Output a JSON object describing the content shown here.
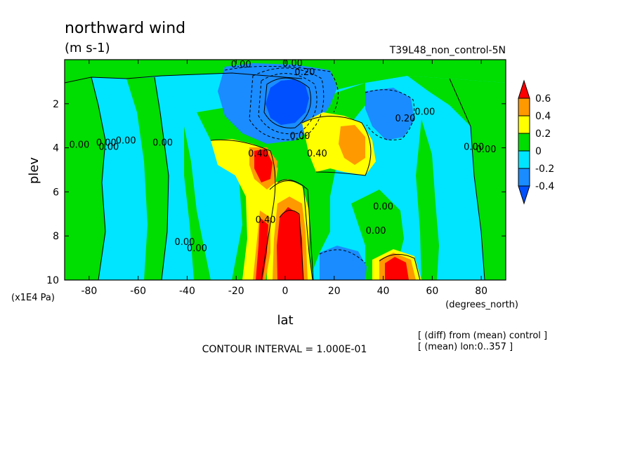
{
  "chart_data": {
    "type": "heatmap",
    "title": "northward wind",
    "units": "(m s-1)",
    "run_label": "T39L48_non_control-5N",
    "xlabel": "lat",
    "x_units": "(degrees_north)",
    "ylabel": "plev",
    "y_units": "(x1E4 Pa)",
    "xlim": [
      -90,
      90
    ],
    "ylim": [
      10,
      0
    ],
    "x_ticks": [
      -80,
      -60,
      -40,
      -20,
      0,
      20,
      40,
      60,
      80
    ],
    "y_ticks": [
      2,
      4,
      6,
      8,
      10
    ],
    "contour_interval_text": "CONTOUR INTERVAL = 1.000E-01",
    "notes": [
      "[ (diff) from (mean) control ]",
      "[ (mean) lon:0..357 ]"
    ],
    "colorbar": {
      "labels": [
        "0.6",
        "0.4",
        "0.2",
        "0",
        "-0.2",
        "-0.4"
      ],
      "levels": [
        {
          "min": 0.6,
          "color": "#ff0000"
        },
        {
          "min": 0.4,
          "max": 0.6,
          "color": "#ff9900"
        },
        {
          "min": 0.2,
          "max": 0.4,
          "color": "#ffff00"
        },
        {
          "min": 0.0,
          "max": 0.2,
          "color": "#00dd00"
        },
        {
          "min": -0.2,
          "max": 0.0,
          "color": "#00e5ff"
        },
        {
          "min": -0.4,
          "max": -0.2,
          "color": "#1a8cff"
        },
        {
          "max": -0.4,
          "color": "#0050ff"
        }
      ]
    },
    "contour_labels": [
      {
        "text": "0.00",
        "lat": -50,
        "plev": 3.9
      },
      {
        "text": "0.00",
        "lat": -65,
        "plev": 3.8
      },
      {
        "text": "0.00",
        "lat": -73,
        "plev": 3.9
      },
      {
        "text": "0.00",
        "lat": -84,
        "plev": 4.0
      },
      {
        "text": "0.00",
        "lat": -72,
        "plev": 4.1
      },
      {
        "text": "0.00",
        "lat": -41,
        "plev": 8.4
      },
      {
        "text": "0.00",
        "lat": -36,
        "plev": 8.7
      },
      {
        "text": "0.00",
        "lat": -18,
        "plev": 0.35
      },
      {
        "text": "0.00",
        "lat": 3,
        "plev": 0.3
      },
      {
        "text": "0.20",
        "lat": 8,
        "plev": 0.7
      },
      {
        "text": "0.40",
        "lat": -11,
        "plev": 4.4
      },
      {
        "text": "0.40",
        "lat": 13,
        "plev": 4.4
      },
      {
        "text": "0.40",
        "lat": -8,
        "plev": 7.4
      },
      {
        "text": "0.00",
        "lat": 6,
        "plev": 3.6
      },
      {
        "text": "0.20",
        "lat": 49,
        "plev": 2.8
      },
      {
        "text": "0.00",
        "lat": 57,
        "plev": 2.5
      },
      {
        "text": "0.00",
        "lat": 82,
        "plev": 4.2
      },
      {
        "text": "0.00",
        "lat": 77,
        "plev": 4.1
      },
      {
        "text": "0.00",
        "lat": 40,
        "plev": 6.8
      },
      {
        "text": "0.00",
        "lat": 37,
        "plev": 7.9
      }
    ]
  }
}
